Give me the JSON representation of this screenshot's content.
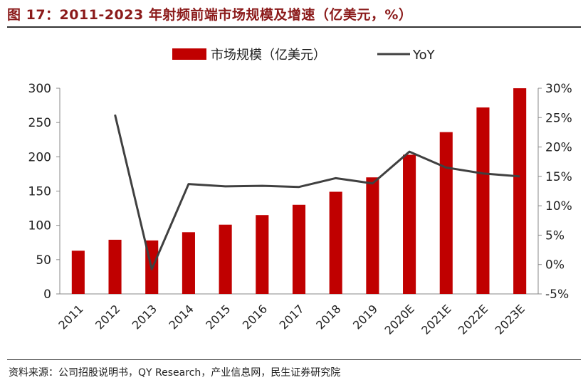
{
  "title": "图 17：2011-2023 年射频前端市场规模及增速（亿美元，%）",
  "source": "资料来源：公司招股说明书，QY Research，产业信息网，民生证券研究院",
  "colors": {
    "bar": "#C00000",
    "line": "#404040",
    "title": "#8B1A1A"
  },
  "chart_data": {
    "type": "bar",
    "categories": [
      "2011",
      "2012",
      "2013",
      "2014",
      "2015",
      "2016",
      "2017",
      "2018",
      "2019",
      "2020E",
      "2021E",
      "2022E",
      "2023E"
    ],
    "series": [
      {
        "name": "市场规模（亿美元）",
        "type": "bar",
        "axis": "left",
        "values": [
          63,
          79,
          78,
          90,
          101,
          115,
          130,
          149,
          170,
          203,
          236,
          272,
          300
        ]
      },
      {
        "name": "YoY",
        "type": "line",
        "axis": "right",
        "values": [
          null,
          25.5,
          -0.8,
          13.7,
          13.3,
          13.4,
          13.2,
          14.7,
          13.8,
          19.2,
          16.5,
          15.5,
          15.0
        ]
      }
    ],
    "y_left": {
      "ylim": [
        0,
        300
      ],
      "ticks": [
        "0",
        "50",
        "100",
        "150",
        "200",
        "250",
        "300"
      ]
    },
    "y_right": {
      "ylim": [
        -5,
        30
      ],
      "ticks": [
        "-5%",
        "0%",
        "5%",
        "10%",
        "15%",
        "20%",
        "25%",
        "30%"
      ]
    },
    "legend": {
      "placement": "top-center"
    },
    "grid": false
  }
}
